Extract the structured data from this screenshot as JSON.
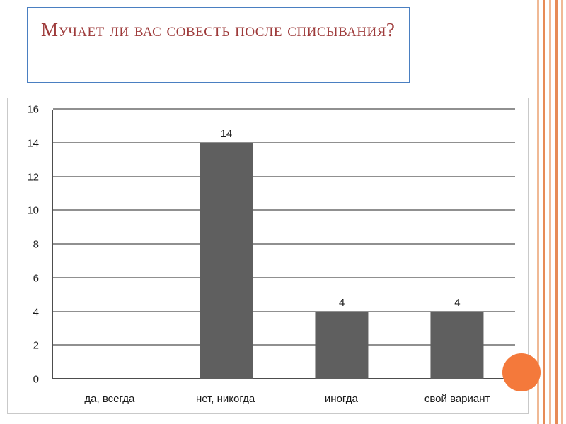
{
  "slide": {
    "title": "Мучает ли вас совесть после списывания?"
  },
  "chart_data": {
    "type": "bar",
    "categories": [
      "да, всегда",
      "нет, никогда",
      "иногда",
      "свой вариант"
    ],
    "values": [
      0,
      14,
      4,
      4
    ],
    "title": "",
    "xlabel": "",
    "ylabel": "",
    "ylim": [
      0,
      16
    ],
    "ytick_step": 2,
    "grid": true,
    "legend": "none",
    "bar_color": "#5F5F5F"
  },
  "colors": {
    "title_text": "#9E3B3B",
    "title_border": "#4A7FC1",
    "gridline": "#909090",
    "axis": "#4D4D4D",
    "accent_circle": "#F4793B",
    "stripe_light": "#F0B995",
    "stripe_dark": "#E78B57"
  }
}
